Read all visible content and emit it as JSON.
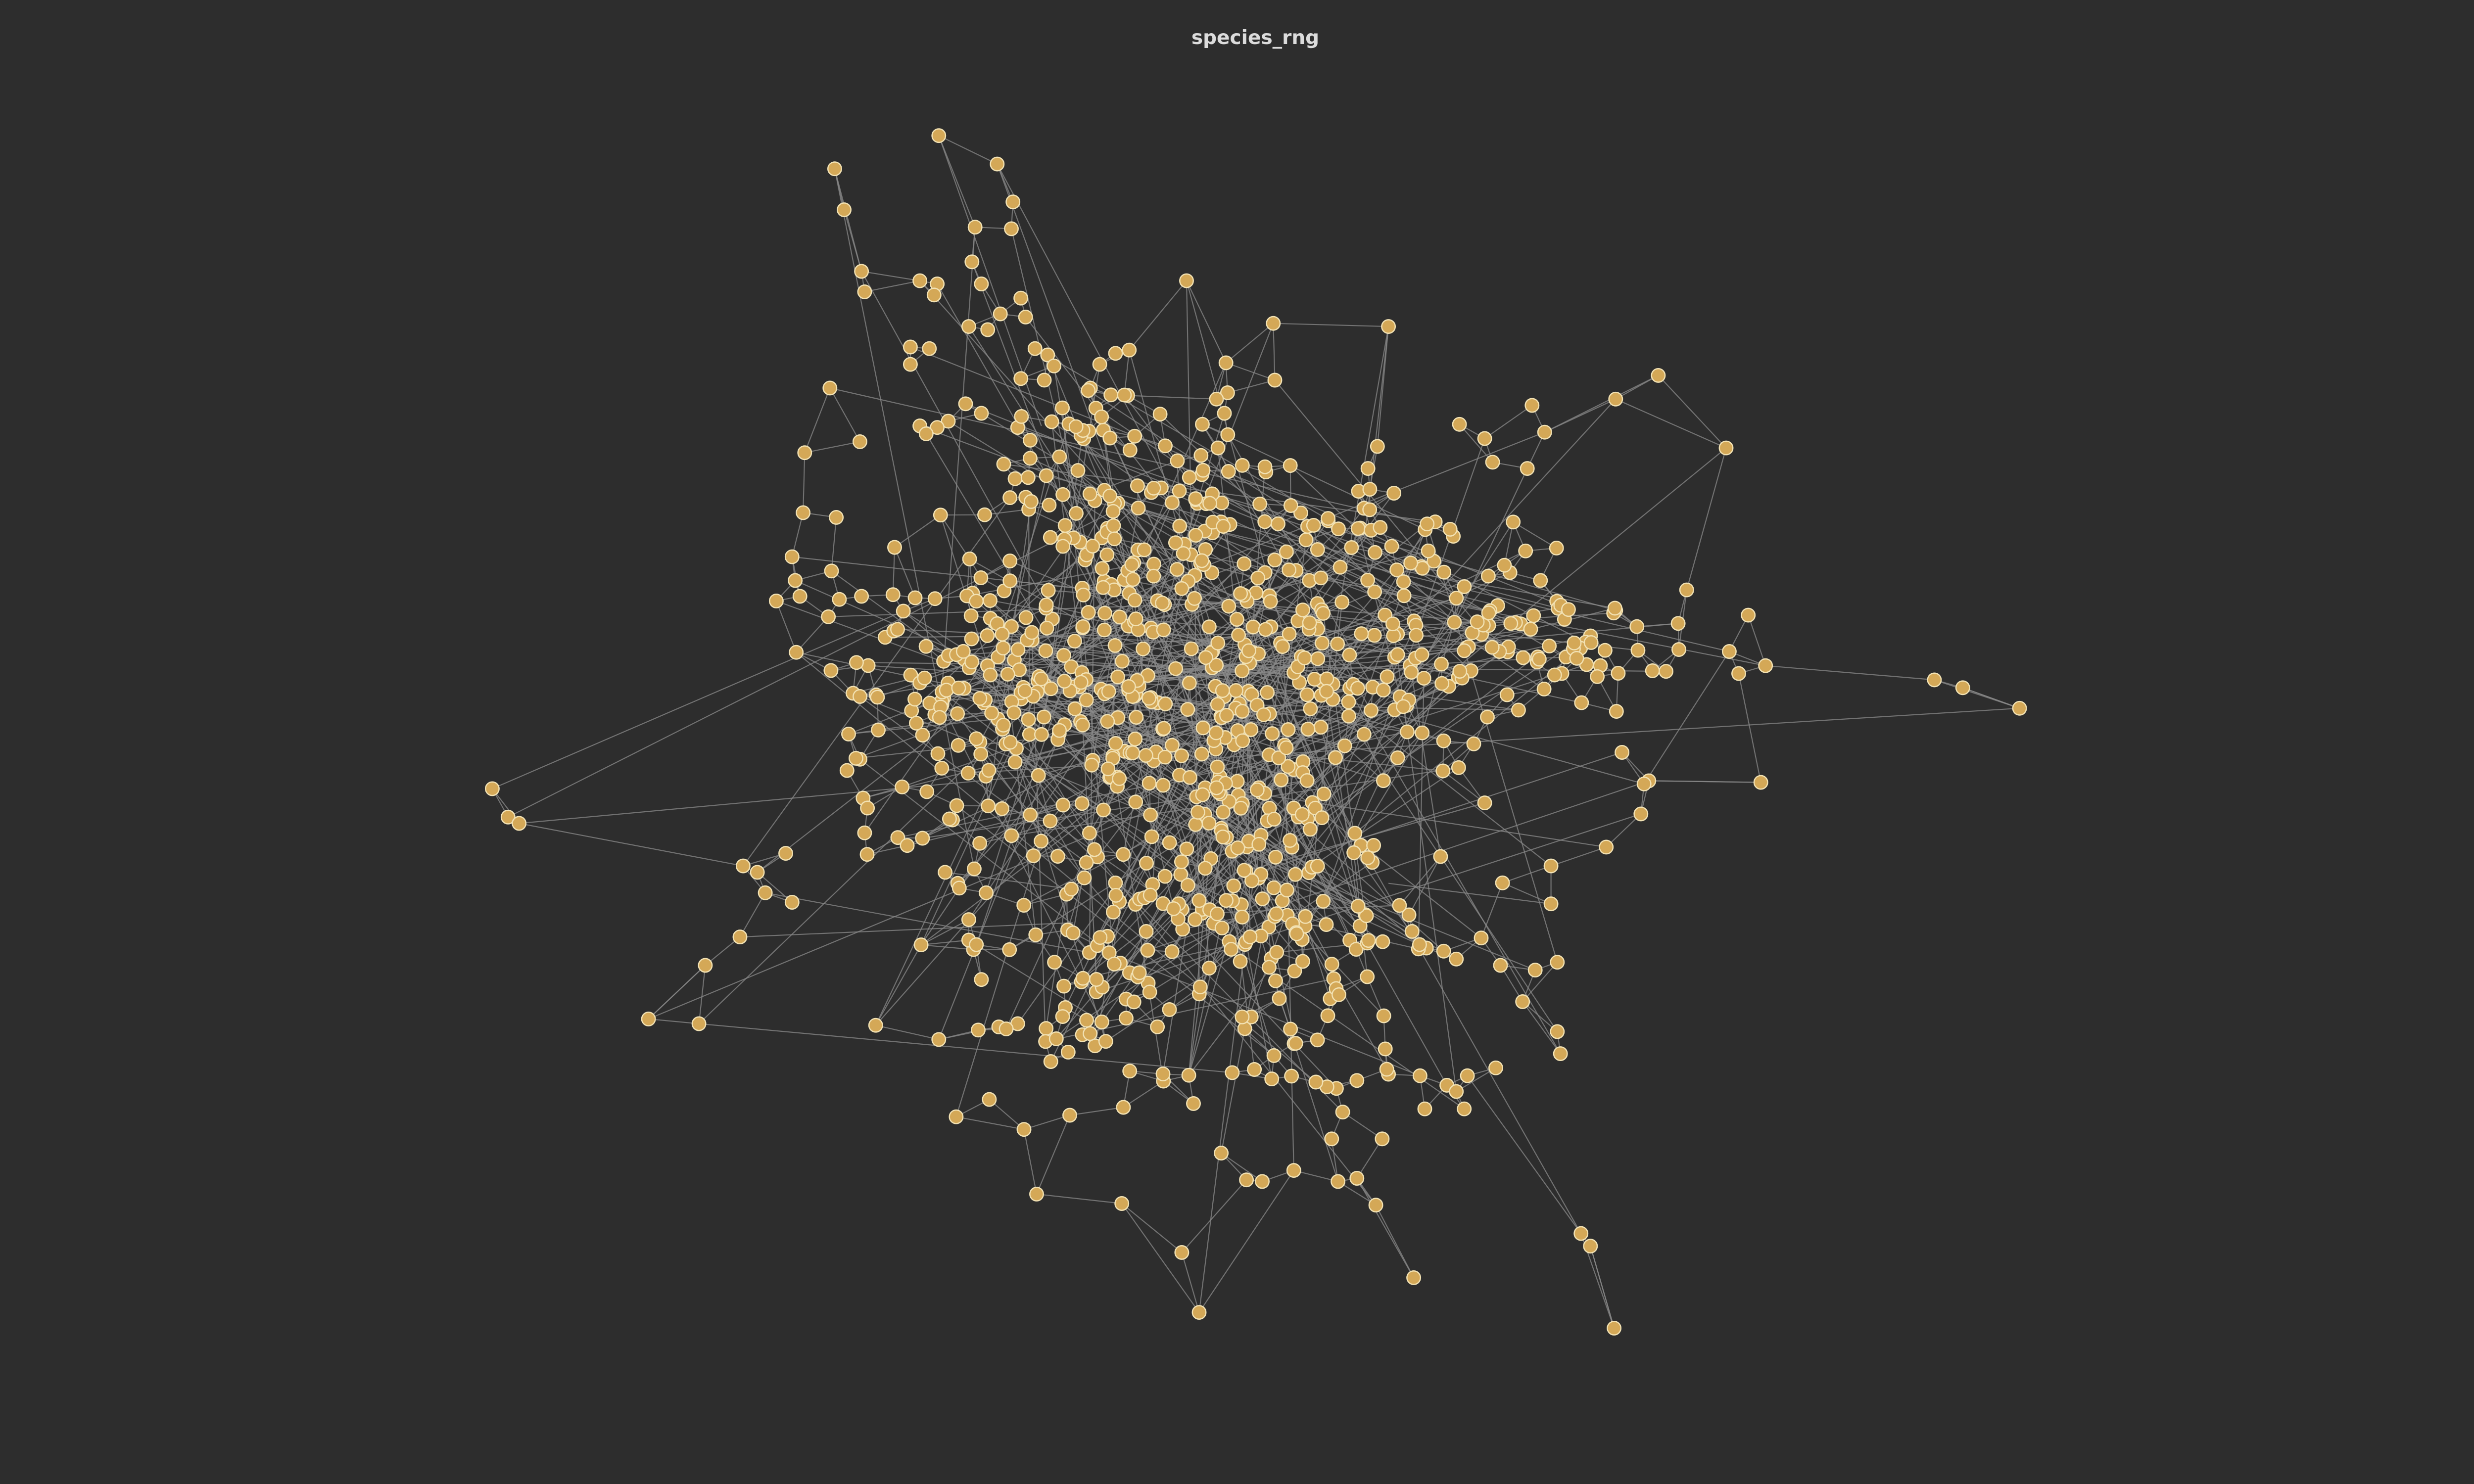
{
  "title": "species_rng",
  "colors": {
    "background": "#2d2d2d",
    "node_fill": "#d4a857",
    "node_stroke": "#f2e2b4",
    "edge": "#8a8a8a",
    "title": "#dcdcdc"
  }
}
